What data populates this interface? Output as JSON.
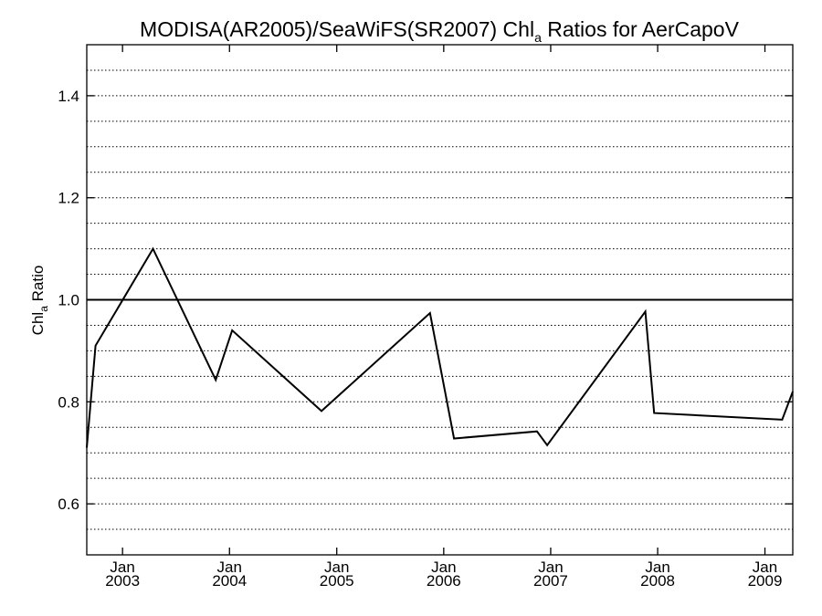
{
  "chart_data": {
    "type": "line",
    "title": {
      "prefix": "MODISA(AR2005)/SeaWiFS(SR2007)  Chl",
      "subscript": "a",
      "suffix": " Ratios for AerCapoV"
    },
    "ylabel": {
      "base": "Chl",
      "subscript": "a",
      "suffix": " Ratio"
    },
    "xlim": [
      "2002-09-01",
      "2009-04-06"
    ],
    "ylim": [
      0.5,
      1.5
    ],
    "yticks": [
      {
        "value": 0.6,
        "label": "0.6"
      },
      {
        "value": 0.8,
        "label": "0.8"
      },
      {
        "value": 1.0,
        "label": "1.0"
      },
      {
        "value": 1.2,
        "label": "1.2"
      },
      {
        "value": 1.4,
        "label": "1.4"
      }
    ],
    "xticks": [
      {
        "date": "2003-01-01",
        "month": "Jan",
        "year": "2003"
      },
      {
        "date": "2004-01-01",
        "month": "Jan",
        "year": "2004"
      },
      {
        "date": "2005-01-01",
        "month": "Jan",
        "year": "2005"
      },
      {
        "date": "2006-01-01",
        "month": "Jan",
        "year": "2006"
      },
      {
        "date": "2007-01-01",
        "month": "Jan",
        "year": "2007"
      },
      {
        "date": "2008-01-01",
        "month": "Jan",
        "year": "2008"
      },
      {
        "date": "2009-01-01",
        "month": "Jan",
        "year": "2009"
      }
    ],
    "gridlines": [
      0.55,
      0.6,
      0.65,
      0.7,
      0.75,
      0.8,
      0.85,
      0.9,
      0.95,
      1.05,
      1.1,
      1.15,
      1.2,
      1.25,
      1.3,
      1.35,
      1.4,
      1.45
    ],
    "grid": "dotted horizontal",
    "reference_line": 1.0,
    "series": [
      {
        "color": "#000000",
        "points": [
          {
            "x": "2002-09-01",
            "y": 0.71
          },
          {
            "x": "2002-10-01",
            "y": 0.91
          },
          {
            "x": "2003-04-15",
            "y": 1.1
          },
          {
            "x": "2003-11-15",
            "y": 0.843
          },
          {
            "x": "2004-01-10",
            "y": 0.94
          },
          {
            "x": "2004-11-10",
            "y": 0.782
          },
          {
            "x": "2005-11-15",
            "y": 0.974
          },
          {
            "x": "2006-02-05",
            "y": 0.728
          },
          {
            "x": "2006-11-15",
            "y": 0.742
          },
          {
            "x": "2006-12-20",
            "y": 0.715
          },
          {
            "x": "2007-11-20",
            "y": 0.977
          },
          {
            "x": "2007-12-20",
            "y": 0.778
          },
          {
            "x": "2009-03-01",
            "y": 0.765
          },
          {
            "x": "2009-04-06",
            "y": 0.82
          }
        ]
      }
    ]
  }
}
